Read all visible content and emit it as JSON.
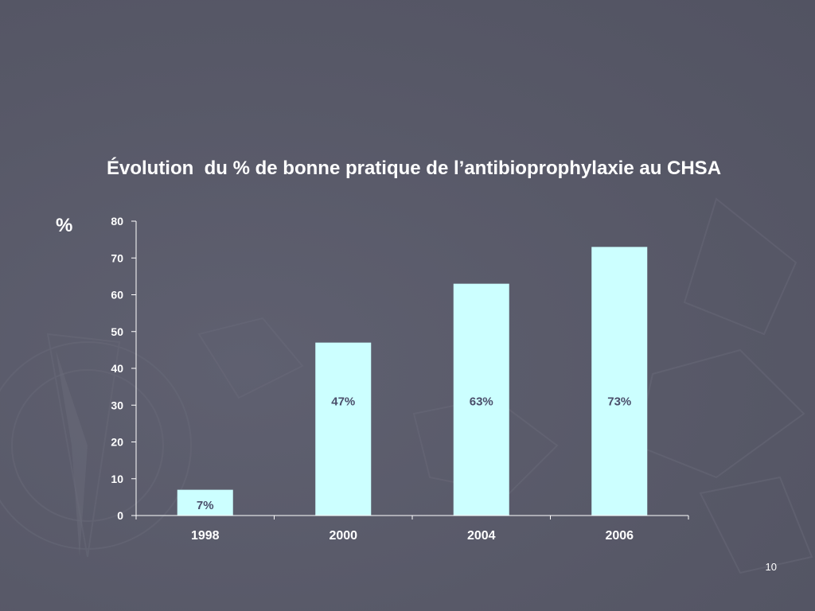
{
  "slide": {
    "title": "Évolution  du % de bonne pratique de l’antibioprophylaxie au CHSA",
    "page_number": "10"
  },
  "colors": {
    "background": "#5a5b6a",
    "bar_fill": "#ccffff",
    "text": "#ffffff",
    "data_label": "#4a4e6a",
    "axis": "#ffffff"
  },
  "chart_data": {
    "type": "bar",
    "title": "Évolution  du % de bonne pratique de l’antibioprophylaxie au CHSA",
    "ylabel": "%",
    "xlabel": "",
    "categories": [
      "1998",
      "2000",
      "2004",
      "2006"
    ],
    "values": [
      7,
      47,
      63,
      73
    ],
    "data_labels": [
      "7%",
      "47%",
      "63%",
      "73%"
    ],
    "ylim": [
      0,
      80
    ],
    "yticks": [
      0,
      10,
      20,
      30,
      40,
      50,
      60,
      70,
      80
    ],
    "grid": false,
    "legend": "none"
  }
}
